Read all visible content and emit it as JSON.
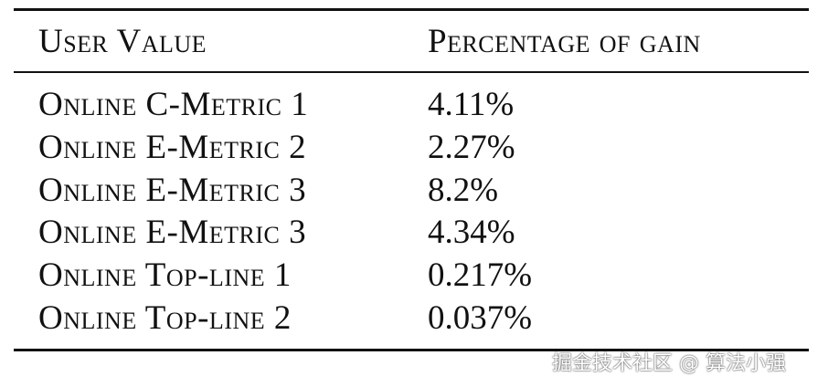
{
  "table": {
    "header": [
      "User Value",
      "Percentage of gain"
    ],
    "rows": [
      [
        "Online C-Metric 1",
        "4.11%"
      ],
      [
        "Online E-Metric 2",
        "2.27%"
      ],
      [
        "Online E-Metric 3",
        "8.2%"
      ],
      [
        "Online E-Metric 3",
        "4.34%"
      ],
      [
        "Online Top-line 1",
        "0.217%"
      ],
      [
        "Online Top-line 2",
        "0.037%"
      ]
    ]
  },
  "watermark": "掘金技术社区 @ 算法小强"
}
